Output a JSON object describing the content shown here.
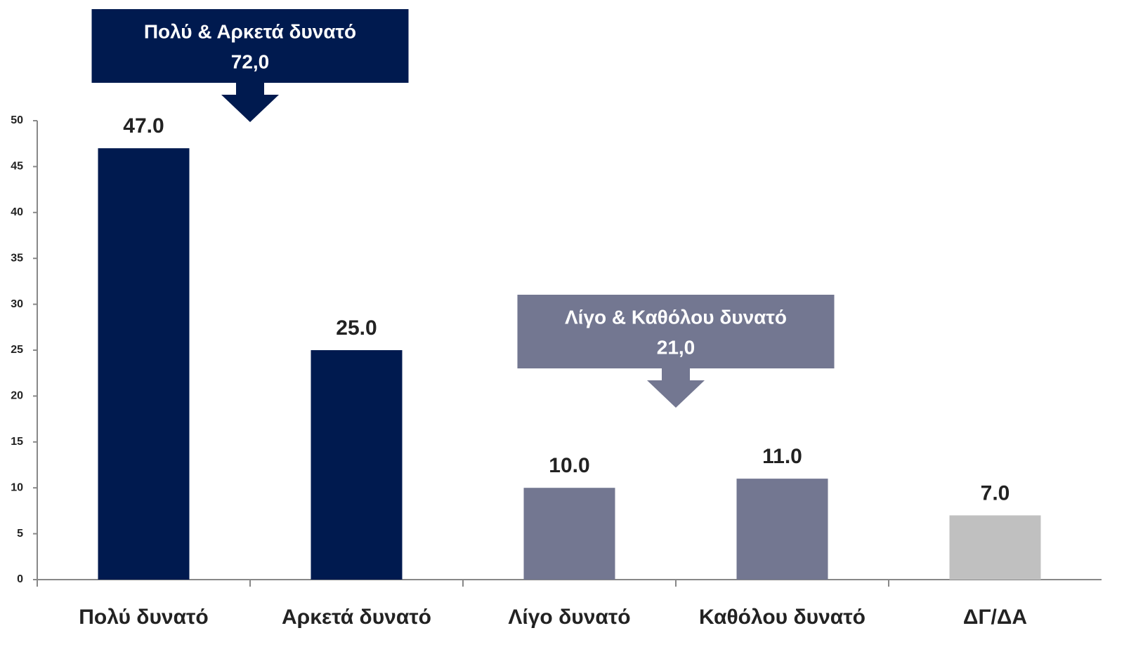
{
  "chart_data": {
    "type": "bar",
    "categories": [
      "Πολύ δυνατό",
      "Αρκετά δυνατό",
      "Λίγο δυνατό",
      "Καθόλου δυνατό",
      "ΔΓ/ΔΑ"
    ],
    "values": [
      47,
      25,
      10,
      11,
      7
    ],
    "value_labels": [
      "47.0",
      "25.0",
      "10.0",
      "11.0",
      "7.0"
    ],
    "colors": [
      "#001a4f",
      "#001a4f",
      "#737791",
      "#737791",
      "#c0c0c0"
    ],
    "ylim": [
      0,
      50
    ],
    "yticks": [
      0,
      5,
      10,
      15,
      20,
      25,
      30,
      35,
      40,
      45,
      50
    ],
    "grid": false,
    "annotations": [
      {
        "text": "Πολύ & Αρκετά δυνατό",
        "label": "72,0",
        "color": "#001a4f"
      },
      {
        "text": "Λίγο & Καθόλου δυνατό",
        "label": "21,0",
        "color": "#737791"
      }
    ]
  }
}
